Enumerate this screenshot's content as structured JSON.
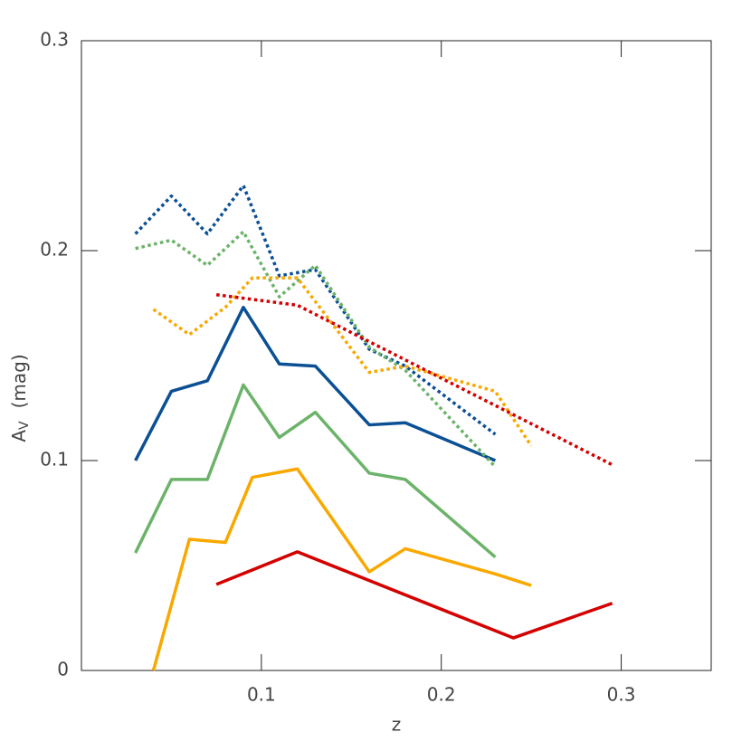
{
  "chart_data": {
    "type": "line",
    "xlabel": "z",
    "ylabel": "A",
    "ylabel_sub": "V",
    "ylabel_unit": "(mag)",
    "xlim": [
      0,
      0.35
    ],
    "xticks": [
      0.1,
      0.2,
      0.3
    ],
    "ylim": [
      0,
      0.3
    ],
    "yticks": [
      0,
      0.1,
      0.2,
      0.3
    ],
    "series": [
      {
        "color": "#0b4f94",
        "linestyle": "solid",
        "x": [
          0.03,
          0.05,
          0.07,
          0.09,
          0.11,
          0.13,
          0.16,
          0.18,
          0.23
        ],
        "values": [
          0.1,
          0.133,
          0.138,
          0.173,
          0.146,
          0.145,
          0.117,
          0.118,
          0.1
        ]
      },
      {
        "color": "#6cb36a",
        "linestyle": "solid",
        "x": [
          0.03,
          0.05,
          0.07,
          0.09,
          0.11,
          0.13,
          0.16,
          0.18,
          0.23
        ],
        "values": [
          0.056,
          0.091,
          0.091,
          0.136,
          0.111,
          0.123,
          0.094,
          0.091,
          0.054
        ]
      },
      {
        "color": "#f9a800",
        "linestyle": "solid",
        "x": [
          0.04,
          0.06,
          0.08,
          0.095,
          0.12,
          0.16,
          0.18,
          0.23,
          0.25
        ],
        "values": [
          0,
          0.0625,
          0.061,
          0.092,
          0.096,
          0.047,
          0.058,
          0.046,
          0.0405
        ]
      },
      {
        "color": "#d40000",
        "linestyle": "solid",
        "x": [
          0.075,
          0.12,
          0.24,
          0.295
        ],
        "values": [
          0.041,
          0.0565,
          0.0155,
          0.032
        ]
      },
      {
        "color": "#0b4f94",
        "linestyle": "dotted",
        "x": [
          0.03,
          0.05,
          0.07,
          0.09,
          0.11,
          0.13,
          0.16,
          0.18,
          0.23
        ],
        "values": [
          0.208,
          0.226,
          0.208,
          0.231,
          0.188,
          0.191,
          0.153,
          0.145,
          0.1125
        ]
      },
      {
        "color": "#6cb36a",
        "linestyle": "dotted",
        "x": [
          0.03,
          0.05,
          0.07,
          0.09,
          0.11,
          0.13,
          0.16,
          0.18,
          0.23
        ],
        "values": [
          0.201,
          0.205,
          0.193,
          0.209,
          0.178,
          0.193,
          0.154,
          0.143,
          0.097
        ]
      },
      {
        "color": "#f9a800",
        "linestyle": "dotted",
        "x": [
          0.04,
          0.06,
          0.08,
          0.095,
          0.12,
          0.16,
          0.18,
          0.23,
          0.25
        ],
        "values": [
          0.172,
          0.16,
          0.173,
          0.187,
          0.187,
          0.142,
          0.145,
          0.133,
          0.107
        ]
      },
      {
        "color": "#d40000",
        "linestyle": "dotted",
        "x": [
          0.075,
          0.12,
          0.295
        ],
        "values": [
          0.179,
          0.174,
          0.098
        ]
      }
    ]
  }
}
